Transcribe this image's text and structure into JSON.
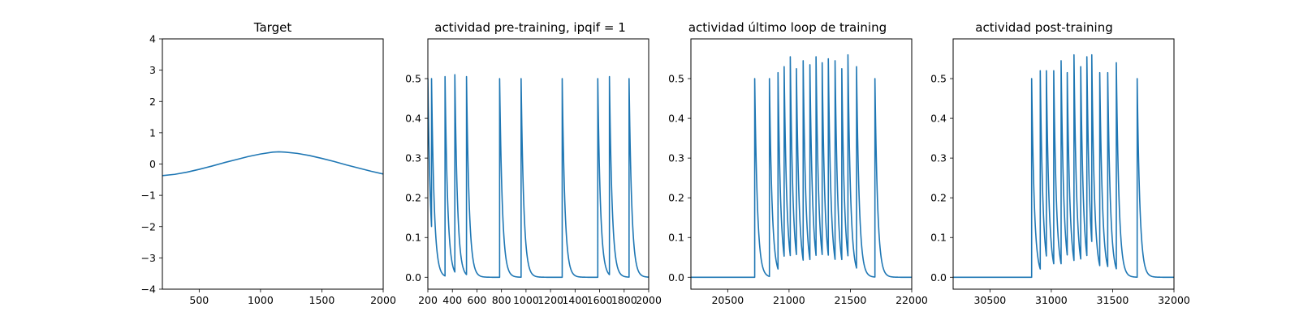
{
  "chart_data": [
    {
      "type": "line",
      "title": "Target",
      "xlim": [
        200,
        2000
      ],
      "ylim": [
        -4,
        4
      ],
      "xticks": [
        500,
        1000,
        1500,
        2000
      ],
      "yticks": [
        -4,
        -3,
        -2,
        -1,
        0,
        1,
        2,
        3,
        4
      ],
      "yticks_labels": [
        "−4",
        "−3",
        "−2",
        "−1",
        "0",
        "1",
        "2",
        "3",
        "4"
      ],
      "grid": false,
      "series": [
        {
          "color": "#1f77b4",
          "x": [
            200,
            300,
            400,
            500,
            600,
            700,
            800,
            900,
            1000,
            1100,
            1150,
            1200,
            1300,
            1400,
            1500,
            1600,
            1700,
            1800,
            1900,
            2000
          ],
          "y": [
            -0.37,
            -0.33,
            -0.26,
            -0.17,
            -0.07,
            0.04,
            0.14,
            0.24,
            0.32,
            0.38,
            0.39,
            0.38,
            0.34,
            0.27,
            0.18,
            0.08,
            -0.03,
            -0.13,
            -0.23,
            -0.32
          ]
        }
      ]
    },
    {
      "type": "line",
      "title": "actividad pre-training, ipqif = 1",
      "xlim": [
        200,
        2000
      ],
      "ylim": [
        -0.03,
        0.6
      ],
      "xticks": [
        200,
        400,
        600,
        800,
        1000,
        1200,
        1400,
        1600,
        1800,
        2000
      ],
      "yticks": [
        0.0,
        0.1,
        0.2,
        0.3,
        0.4,
        0.5
      ],
      "yticks_labels": [
        "0.0",
        "0.1",
        "0.2",
        "0.3",
        "0.4",
        "0.5"
      ],
      "grid": false,
      "baseline_start": 0.5,
      "spikes": [
        {
          "t": 230,
          "peak": 0.5
        },
        {
          "t": 340,
          "peak": 0.505
        },
        {
          "t": 420,
          "peak": 0.51
        },
        {
          "t": 515,
          "peak": 0.505
        },
        {
          "t": 785,
          "peak": 0.5
        },
        {
          "t": 960,
          "peak": 0.5
        },
        {
          "t": 1295,
          "peak": 0.5
        },
        {
          "t": 1585,
          "peak": 0.5
        },
        {
          "t": 1680,
          "peak": 0.505
        },
        {
          "t": 1840,
          "peak": 0.5
        }
      ],
      "series": [
        {
          "color": "#1f77b4"
        }
      ]
    },
    {
      "type": "line",
      "title": "actividad último loop de training",
      "xlim": [
        20200,
        22000
      ],
      "ylim": [
        -0.03,
        0.6
      ],
      "xticks": [
        20500,
        21000,
        21500,
        22000
      ],
      "yticks": [
        0.0,
        0.1,
        0.2,
        0.3,
        0.4,
        0.5
      ],
      "yticks_labels": [
        "0.0",
        "0.1",
        "0.2",
        "0.3",
        "0.4",
        "0.5"
      ],
      "grid": false,
      "baseline_start": 0.0,
      "spikes": [
        {
          "t": 20720,
          "peak": 0.5
        },
        {
          "t": 20840,
          "peak": 0.5
        },
        {
          "t": 20910,
          "peak": 0.515
        },
        {
          "t": 20960,
          "peak": 0.53
        },
        {
          "t": 21010,
          "peak": 0.555
        },
        {
          "t": 21060,
          "peak": 0.525
        },
        {
          "t": 21115,
          "peak": 0.545
        },
        {
          "t": 21170,
          "peak": 0.535
        },
        {
          "t": 21220,
          "peak": 0.555
        },
        {
          "t": 21270,
          "peak": 0.54
        },
        {
          "t": 21320,
          "peak": 0.55
        },
        {
          "t": 21375,
          "peak": 0.545
        },
        {
          "t": 21430,
          "peak": 0.525
        },
        {
          "t": 21480,
          "peak": 0.56
        },
        {
          "t": 21550,
          "peak": 0.53
        },
        {
          "t": 21700,
          "peak": 0.5
        }
      ],
      "series": [
        {
          "color": "#1f77b4"
        }
      ]
    },
    {
      "type": "line",
      "title": "actividad post-training",
      "xlim": [
        30200,
        32000
      ],
      "ylim": [
        -0.03,
        0.6
      ],
      "xticks": [
        30500,
        31000,
        31500,
        32000
      ],
      "yticks": [
        0.0,
        0.1,
        0.2,
        0.3,
        0.4,
        0.5
      ],
      "yticks_labels": [
        "0.0",
        "0.1",
        "0.2",
        "0.3",
        "0.4",
        "0.5"
      ],
      "grid": false,
      "baseline_start": 0.0,
      "spikes": [
        {
          "t": 30840,
          "peak": 0.5
        },
        {
          "t": 30910,
          "peak": 0.52
        },
        {
          "t": 30960,
          "peak": 0.52
        },
        {
          "t": 31020,
          "peak": 0.52
        },
        {
          "t": 31080,
          "peak": 0.545
        },
        {
          "t": 31130,
          "peak": 0.515
        },
        {
          "t": 31185,
          "peak": 0.56
        },
        {
          "t": 31240,
          "peak": 0.53
        },
        {
          "t": 31290,
          "peak": 0.555
        },
        {
          "t": 31330,
          "peak": 0.56
        },
        {
          "t": 31395,
          "peak": 0.515
        },
        {
          "t": 31460,
          "peak": 0.515
        },
        {
          "t": 31530,
          "peak": 0.54
        },
        {
          "t": 31700,
          "peak": 0.5
        }
      ],
      "series": [
        {
          "color": "#1f77b4"
        }
      ]
    }
  ]
}
